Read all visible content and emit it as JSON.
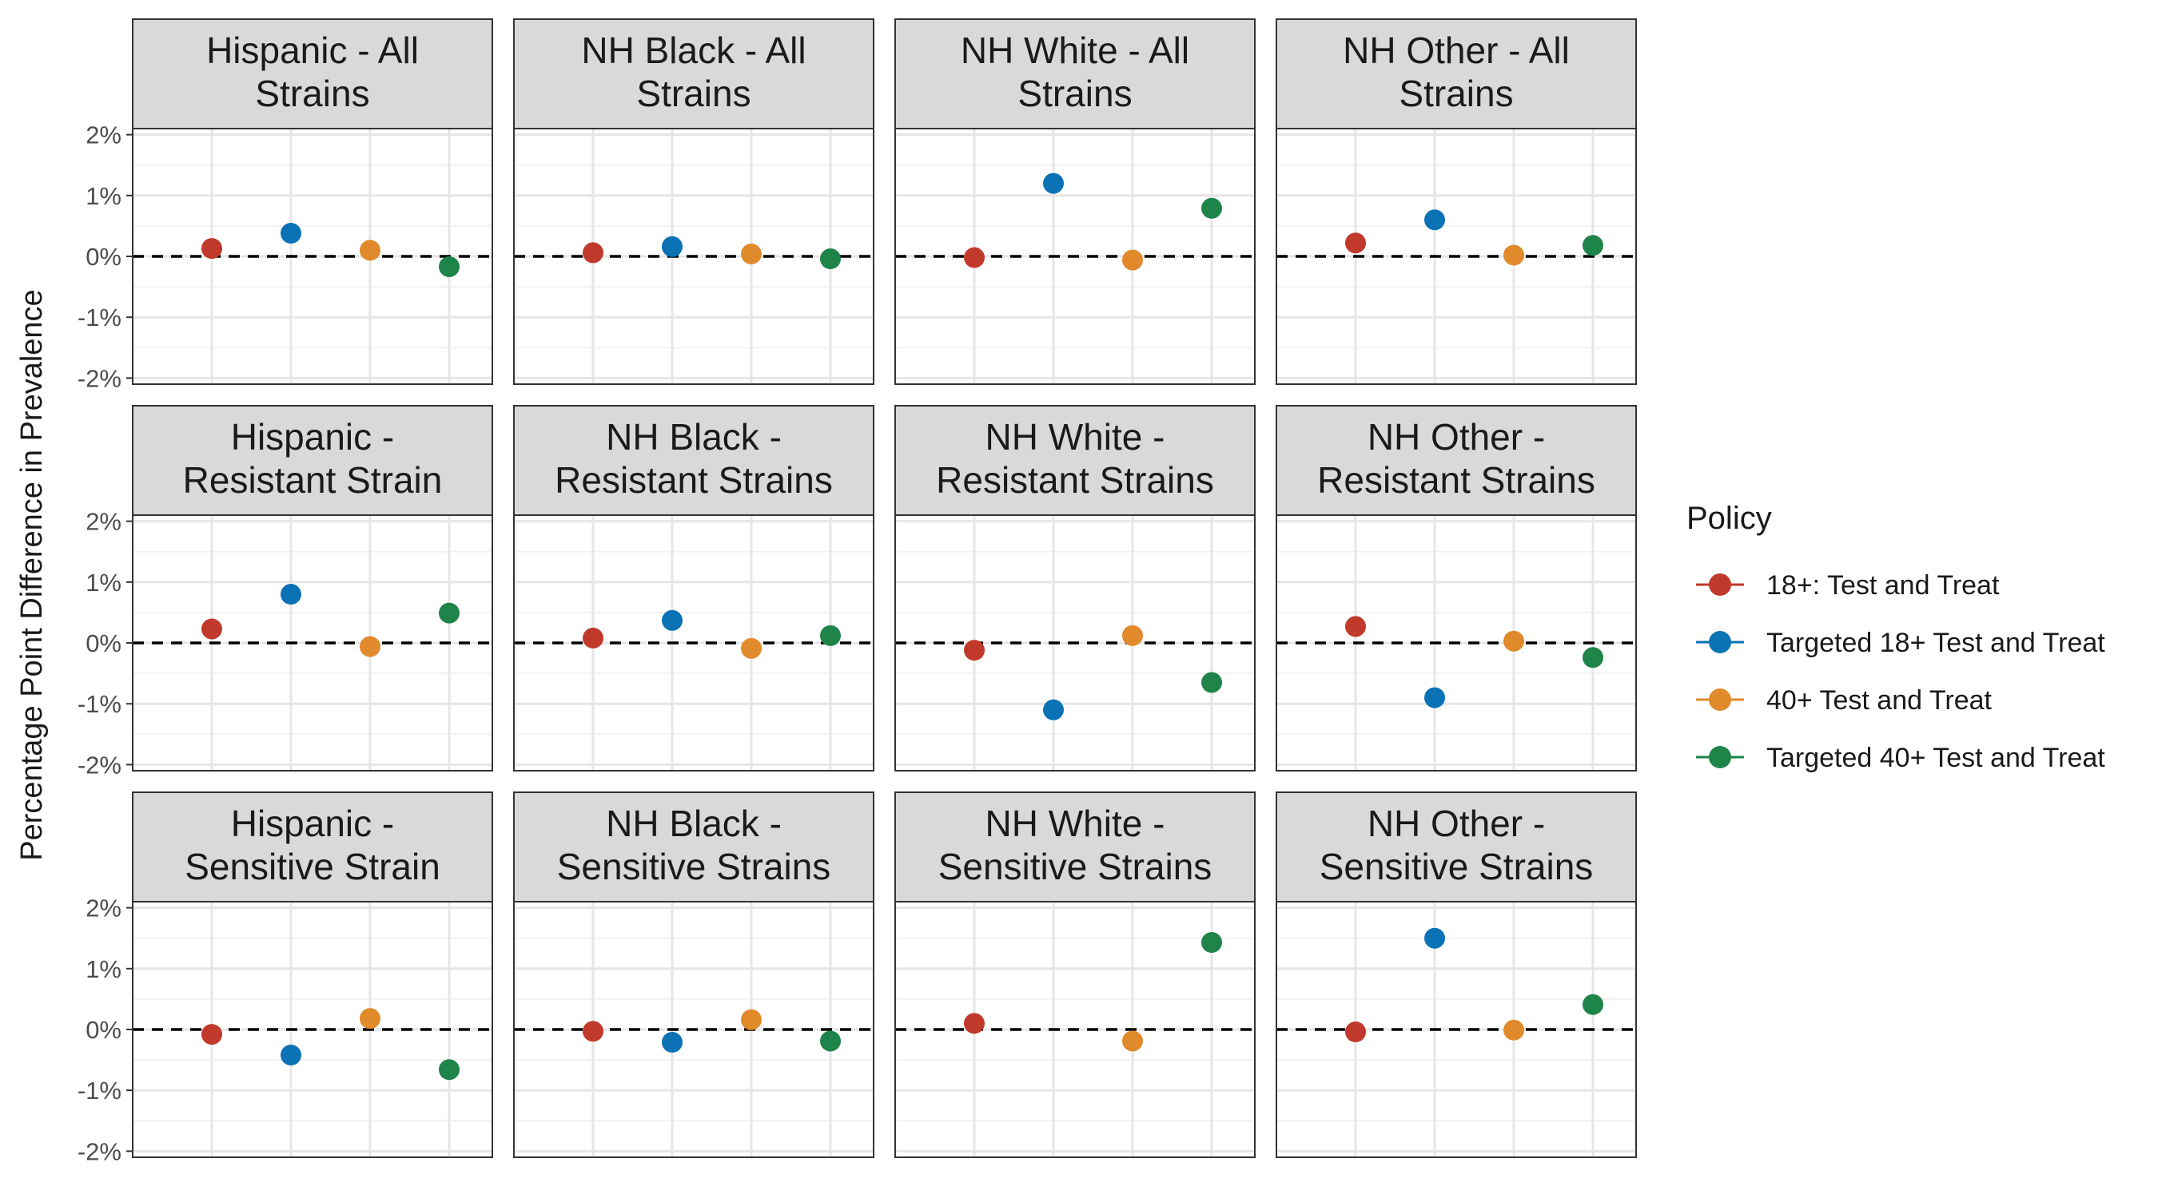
{
  "chart_data": {
    "type": "scatter",
    "facet_layout": "3 rows x 4 columns",
    "ylabel": "Percentage Point Difference in Prevalence",
    "xlabel": "",
    "y_ticks": [
      "2%",
      "1%",
      "0%",
      "-1%",
      "-2%"
    ],
    "ylim": [
      -2.1,
      2.1
    ],
    "reference_line": {
      "y": 0,
      "style": "dashed"
    },
    "grid": true,
    "legend": {
      "title": "Policy",
      "placement": "right",
      "entries": [
        {
          "label": "18+: Test and Treat",
          "color": "#C0392B"
        },
        {
          "label": "Targeted 18+ Test and Treat",
          "color": "#0A72B5"
        },
        {
          "label": "40+ Test and Treat",
          "color": "#E08A2B"
        },
        {
          "label": "Targeted 40+ Test and Treat",
          "color": "#1E8449"
        }
      ]
    },
    "series_order": [
      "18+: Test and Treat",
      "Targeted 18+ Test and Treat",
      "40+ Test and Treat",
      "Targeted 40+ Test and Treat"
    ],
    "panels": [
      {
        "title_lines": [
          "Hispanic - All",
          "Strains"
        ],
        "values": [
          0.13,
          0.38,
          0.1,
          -0.17
        ]
      },
      {
        "title_lines": [
          "NH Black - All",
          "Strains"
        ],
        "values": [
          0.06,
          0.16,
          0.04,
          -0.04
        ]
      },
      {
        "title_lines": [
          "NH White - All",
          "Strains"
        ],
        "values": [
          -0.02,
          1.2,
          -0.06,
          0.79
        ]
      },
      {
        "title_lines": [
          "NH Other - All",
          "Strains"
        ],
        "values": [
          0.22,
          0.6,
          0.02,
          0.18
        ]
      },
      {
        "title_lines": [
          "Hispanic -",
          "Resistant Strain"
        ],
        "values": [
          0.23,
          0.8,
          -0.06,
          0.49
        ]
      },
      {
        "title_lines": [
          "NH Black -",
          "Resistant Strains"
        ],
        "values": [
          0.08,
          0.37,
          -0.09,
          0.12
        ]
      },
      {
        "title_lines": [
          "NH White -",
          "Resistant Strains"
        ],
        "values": [
          -0.12,
          -1.1,
          0.12,
          -0.65
        ]
      },
      {
        "title_lines": [
          "NH Other -",
          "Resistant Strains"
        ],
        "values": [
          0.27,
          -0.9,
          0.03,
          -0.24
        ]
      },
      {
        "title_lines": [
          "Hispanic -",
          "Sensitive Strain"
        ],
        "values": [
          -0.08,
          -0.42,
          0.18,
          -0.66
        ]
      },
      {
        "title_lines": [
          "NH Black -",
          "Sensitive Strains"
        ],
        "values": [
          -0.03,
          -0.21,
          0.16,
          -0.19
        ]
      },
      {
        "title_lines": [
          "NH White -",
          "Sensitive Strains"
        ],
        "values": [
          0.1,
          null,
          -0.19,
          1.43
        ]
      },
      {
        "title_lines": [
          "NH Other -",
          "Sensitive Strains"
        ],
        "values": [
          -0.04,
          1.5,
          -0.01,
          0.41
        ]
      }
    ]
  }
}
